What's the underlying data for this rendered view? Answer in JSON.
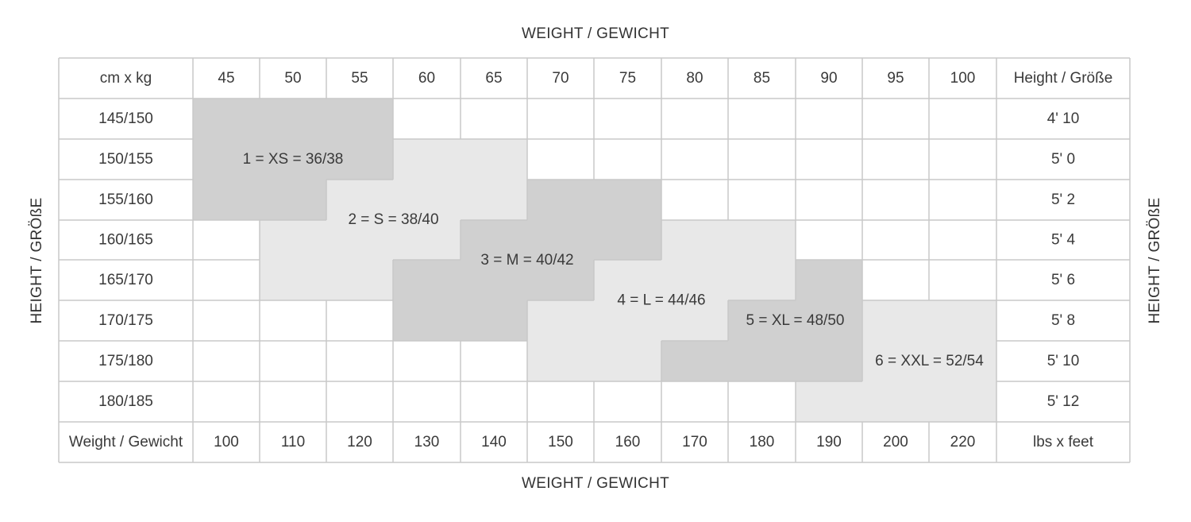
{
  "titles": {
    "top": "WEIGHT / GEWICHT",
    "bottom": "WEIGHT / GEWICHT",
    "left": "HEIGHT / GRÖßE",
    "right": "HEIGHT / GRÖßE"
  },
  "colors": {
    "dark_band": "#d0d0d0",
    "light_band": "#e8e8e8",
    "grid_line": "#c8c8c8",
    "text": "#3a3a3a"
  },
  "chart_data": {
    "type": "table",
    "corner_label": "cm x kg",
    "right_header": "Height / Größe",
    "weights_kg": [
      "45",
      "50",
      "55",
      "60",
      "65",
      "70",
      "75",
      "80",
      "85",
      "90",
      "95",
      "100"
    ],
    "heights_cm": [
      "145/150",
      "150/155",
      "155/160",
      "160/165",
      "165/170",
      "170/175",
      "175/180",
      "180/185"
    ],
    "heights_ft": [
      "4' 10",
      "5' 0",
      "5' 2",
      "5' 4",
      "5' 6",
      "5' 8",
      "5' 10",
      "5' 12"
    ],
    "bottom_row_label": "Weight / Gewicht",
    "weights_lbs": [
      "100",
      "110",
      "120",
      "130",
      "140",
      "150",
      "160",
      "170",
      "180",
      "190",
      "200",
      "220"
    ],
    "bottom_right_label": "lbs x feet",
    "sizes": [
      {
        "label": "1 = XS = 36/38",
        "shade": "dark",
        "cells": [
          [
            0,
            0
          ],
          [
            0,
            1
          ],
          [
            0,
            2
          ],
          [
            1,
            0
          ],
          [
            1,
            1
          ],
          [
            1,
            2
          ],
          [
            2,
            0
          ],
          [
            2,
            1
          ]
        ]
      },
      {
        "label": "2 = S = 38/40",
        "shade": "light",
        "cells": [
          [
            1,
            3
          ],
          [
            1,
            4
          ],
          [
            2,
            2
          ],
          [
            2,
            3
          ],
          [
            2,
            4
          ],
          [
            3,
            1
          ],
          [
            3,
            2
          ],
          [
            3,
            3
          ],
          [
            4,
            1
          ],
          [
            4,
            2
          ]
        ]
      },
      {
        "label": "3 = M = 40/42",
        "shade": "dark",
        "cells": [
          [
            2,
            5
          ],
          [
            2,
            6
          ],
          [
            3,
            4
          ],
          [
            3,
            5
          ],
          [
            3,
            6
          ],
          [
            4,
            3
          ],
          [
            4,
            4
          ],
          [
            4,
            5
          ],
          [
            5,
            3
          ],
          [
            5,
            4
          ]
        ]
      },
      {
        "label": "4 = L = 44/46",
        "shade": "light",
        "cells": [
          [
            3,
            7
          ],
          [
            3,
            8
          ],
          [
            4,
            6
          ],
          [
            4,
            7
          ],
          [
            4,
            8
          ],
          [
            5,
            5
          ],
          [
            5,
            6
          ],
          [
            5,
            7
          ],
          [
            6,
            5
          ],
          [
            6,
            6
          ]
        ]
      },
      {
        "label": "5 = XL = 48/50",
        "shade": "dark",
        "cells": [
          [
            4,
            9
          ],
          [
            5,
            8
          ],
          [
            5,
            9
          ],
          [
            6,
            7
          ],
          [
            6,
            8
          ],
          [
            6,
            9
          ]
        ]
      },
      {
        "label": "6 = XXL = 52/54",
        "shade": "light",
        "cells": [
          [
            5,
            10
          ],
          [
            5,
            11
          ],
          [
            6,
            10
          ],
          [
            6,
            11
          ],
          [
            7,
            9
          ],
          [
            7,
            10
          ],
          [
            7,
            11
          ]
        ]
      }
    ]
  }
}
